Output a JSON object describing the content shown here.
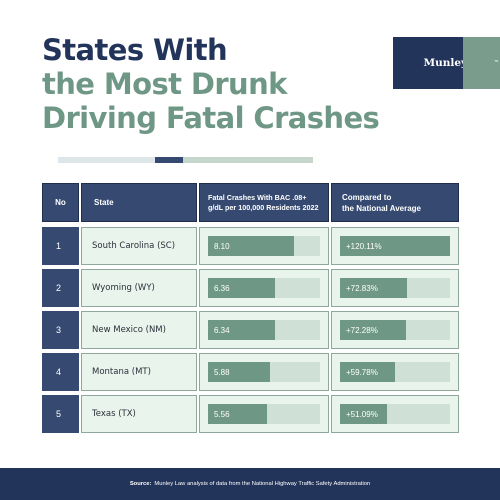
{
  "title": {
    "line1": "States With",
    "line2": "the Most Drunk",
    "line3": "Driving Fatal Crashes"
  },
  "brand": {
    "name": "Munley Law",
    "tm": "™"
  },
  "colors": {
    "navy": "#23345a",
    "navy_light": "#364a71",
    "green": "#6f9786",
    "green_pale": "#cfe0d7",
    "row_bg": "#e9f4ec"
  },
  "chart_data": {
    "type": "table",
    "columns": [
      "No",
      "State",
      "Fatal Crashes With BAC .08+ g/dL per 100,000 Residents 2022",
      "Compared to the National Average"
    ],
    "rows": [
      {
        "no": "1",
        "state": "South Carolina (SC)",
        "rate": 8.1,
        "rate_label": "8.10",
        "vs_national": 120.11,
        "vs_label": "+120.11%"
      },
      {
        "no": "2",
        "state": "Wyoming (WY)",
        "rate": 6.36,
        "rate_label": "6.36",
        "vs_national": 72.83,
        "vs_label": "+72.83%"
      },
      {
        "no": "3",
        "state": "New Mexico (NM)",
        "rate": 6.34,
        "rate_label": "6.34",
        "vs_national": 72.28,
        "vs_label": "+72.28%"
      },
      {
        "no": "4",
        "state": "Montana (MT)",
        "rate": 5.88,
        "rate_label": "5.88",
        "vs_national": 59.78,
        "vs_label": "+59.78%"
      },
      {
        "no": "5",
        "state": "Texas (TX)",
        "rate": 5.56,
        "rate_label": "5.56",
        "vs_national": 51.09,
        "vs_label": "+51.09%"
      }
    ],
    "rate_scale_max": 10.6,
    "vs_scale_max": 120.11
  },
  "header": {
    "no": "No",
    "state": "State",
    "rate_line1": "Fatal Crashes With BAC .08+",
    "rate_line2": "g/dL per 100,000 Residents 2022",
    "vs_line1": "Compared to",
    "vs_line2": "the National Average"
  },
  "footer": {
    "label": "Source:",
    "text": "Munley Law analysis of data from the National Highway Traffic Safety Administration"
  }
}
